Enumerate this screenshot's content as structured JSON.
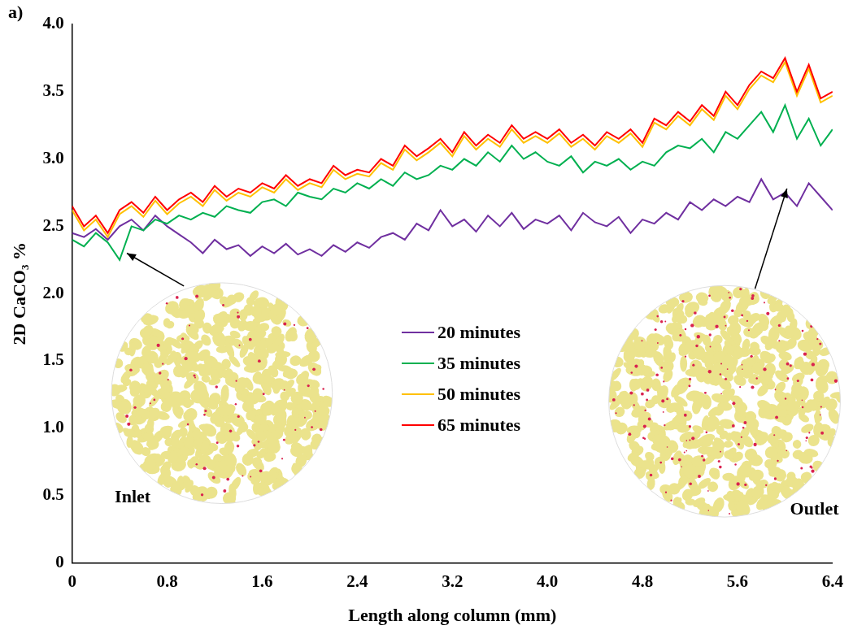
{
  "chart_data": {
    "type": "line",
    "annotations": [
      "a)",
      "Inlet",
      "Outlet"
    ],
    "x_label": "Length along column (mm)",
    "y_label": "2D CaCO₃ %",
    "x": [
      0,
      0.1,
      0.2,
      0.3,
      0.4,
      0.5,
      0.6,
      0.7,
      0.8,
      0.9,
      1,
      1.1,
      1.2,
      1.3,
      1.4,
      1.5,
      1.6,
      1.7,
      1.8,
      1.9,
      2,
      2.1,
      2.2,
      2.3,
      2.4,
      2.5,
      2.6,
      2.7,
      2.8,
      2.9,
      3,
      3.1,
      3.2,
      3.3,
      3.4,
      3.5,
      3.6,
      3.7,
      3.8,
      3.9,
      4,
      4.1,
      4.2,
      4.3,
      4.4,
      4.5,
      4.6,
      4.7,
      4.8,
      4.9,
      5,
      5.1,
      5.2,
      5.3,
      5.4,
      5.5,
      5.6,
      5.7,
      5.8,
      5.9,
      6,
      6.1,
      6.2,
      6.3,
      6.4
    ],
    "series": [
      {
        "name": "20 minutes",
        "color": "#7030a0",
        "values": [
          2.45,
          2.42,
          2.48,
          2.4,
          2.5,
          2.55,
          2.47,
          2.58,
          2.5,
          2.44,
          2.38,
          2.3,
          2.4,
          2.33,
          2.36,
          2.28,
          2.35,
          2.3,
          2.37,
          2.29,
          2.33,
          2.28,
          2.36,
          2.31,
          2.38,
          2.34,
          2.42,
          2.45,
          2.4,
          2.52,
          2.47,
          2.62,
          2.5,
          2.55,
          2.46,
          2.58,
          2.5,
          2.6,
          2.48,
          2.55,
          2.52,
          2.58,
          2.47,
          2.6,
          2.53,
          2.5,
          2.57,
          2.45,
          2.55,
          2.52,
          2.6,
          2.55,
          2.68,
          2.62,
          2.7,
          2.65,
          2.72,
          2.68,
          2.85,
          2.7,
          2.75,
          2.65,
          2.82,
          2.72,
          2.62
        ]
      },
      {
        "name": "35 minutes",
        "color": "#00b050",
        "values": [
          2.4,
          2.35,
          2.45,
          2.38,
          2.25,
          2.5,
          2.47,
          2.55,
          2.52,
          2.58,
          2.55,
          2.6,
          2.57,
          2.65,
          2.62,
          2.6,
          2.68,
          2.7,
          2.65,
          2.75,
          2.72,
          2.7,
          2.78,
          2.75,
          2.82,
          2.78,
          2.85,
          2.8,
          2.9,
          2.85,
          2.88,
          2.95,
          2.92,
          3.0,
          2.95,
          3.05,
          2.98,
          3.1,
          3.0,
          3.05,
          2.98,
          2.95,
          3.02,
          2.9,
          2.98,
          2.95,
          3.0,
          2.92,
          2.98,
          2.95,
          3.05,
          3.1,
          3.08,
          3.15,
          3.05,
          3.2,
          3.15,
          3.25,
          3.35,
          3.2,
          3.4,
          3.15,
          3.3,
          3.1,
          3.22
        ]
      },
      {
        "name": "50 minutes",
        "color": "#ffc000",
        "values": [
          2.62,
          2.47,
          2.55,
          2.42,
          2.59,
          2.65,
          2.57,
          2.69,
          2.59,
          2.67,
          2.72,
          2.65,
          2.77,
          2.69,
          2.75,
          2.72,
          2.79,
          2.75,
          2.85,
          2.77,
          2.82,
          2.79,
          2.92,
          2.85,
          2.89,
          2.87,
          2.97,
          2.92,
          3.07,
          2.99,
          3.05,
          3.12,
          3.02,
          3.17,
          3.07,
          3.15,
          3.09,
          3.22,
          3.12,
          3.17,
          3.12,
          3.19,
          3.09,
          3.15,
          3.07,
          3.17,
          3.12,
          3.19,
          3.09,
          3.27,
          3.22,
          3.32,
          3.25,
          3.37,
          3.29,
          3.47,
          3.37,
          3.52,
          3.62,
          3.57,
          3.72,
          3.47,
          3.67,
          3.42,
          3.47
        ]
      },
      {
        "name": "65 minutes",
        "color": "#ff0000",
        "values": [
          2.65,
          2.5,
          2.58,
          2.45,
          2.62,
          2.68,
          2.6,
          2.72,
          2.62,
          2.7,
          2.75,
          2.68,
          2.8,
          2.72,
          2.78,
          2.75,
          2.82,
          2.78,
          2.88,
          2.8,
          2.85,
          2.82,
          2.95,
          2.88,
          2.92,
          2.9,
          3.0,
          2.95,
          3.1,
          3.02,
          3.08,
          3.15,
          3.05,
          3.2,
          3.1,
          3.18,
          3.12,
          3.25,
          3.15,
          3.2,
          3.15,
          3.22,
          3.12,
          3.18,
          3.1,
          3.2,
          3.15,
          3.22,
          3.12,
          3.3,
          3.25,
          3.35,
          3.28,
          3.4,
          3.32,
          3.5,
          3.4,
          3.55,
          3.65,
          3.6,
          3.75,
          3.5,
          3.7,
          3.45,
          3.5
        ]
      }
    ],
    "xlim": [
      0,
      6.4
    ],
    "ylim": [
      0,
      4
    ],
    "xticks": [
      0,
      0.8,
      1.6,
      2.4,
      3.2,
      {
        "value": 4,
        "label": "4.0"
      },
      4.8,
      5.6,
      6.4
    ],
    "yticks": [
      0,
      0.5,
      {
        "value": 1,
        "label": "1.0"
      },
      1.5,
      {
        "value": 2,
        "label": "2.0"
      },
      2.5,
      {
        "value": 3,
        "label": "3.0"
      },
      3.5,
      {
        "value": 4,
        "label": "4.0"
      }
    ],
    "grid": false,
    "legend": "center"
  }
}
